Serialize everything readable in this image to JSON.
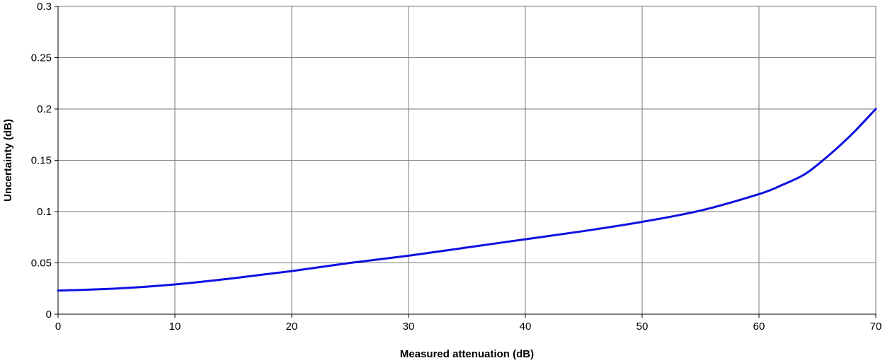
{
  "chart_data": {
    "type": "line",
    "title": "",
    "xlabel": "Measured attenuation (dB)",
    "ylabel": "Uncertainty (dB)",
    "xlim": [
      0,
      70
    ],
    "ylim": [
      0,
      0.3
    ],
    "x_ticks": [
      "0",
      "10",
      "20",
      "30",
      "40",
      "50",
      "60",
      "70"
    ],
    "y_ticks": [
      "0",
      "0.05",
      "0.1",
      "0.15",
      "0.2",
      "0.25",
      "0.3"
    ],
    "grid": true,
    "legend": "none",
    "series": [
      {
        "color": "#1010e0",
        "x": [
          0,
          5,
          10,
          15,
          20,
          25,
          30,
          35,
          40,
          45,
          50,
          55,
          60,
          62,
          64,
          66,
          68,
          70
        ],
        "y": [
          0.023,
          0.025,
          0.029,
          0.035,
          0.042,
          0.05,
          0.057,
          0.065,
          0.073,
          0.081,
          0.09,
          0.101,
          0.117,
          0.126,
          0.137,
          0.155,
          0.176,
          0.2
        ]
      }
    ]
  }
}
